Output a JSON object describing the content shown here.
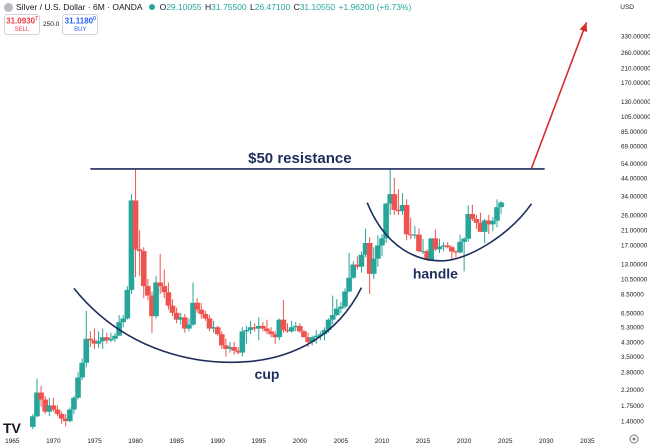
{
  "header": {
    "title": "Silver / U.S. Dollar · 6M · OANDA",
    "ohlc": [
      {
        "k": "O",
        "v": "29.10055"
      },
      {
        "k": "H",
        "v": "31.75500"
      },
      {
        "k": "L",
        "v": "26.47100"
      },
      {
        "k": "C",
        "v": "31.10550"
      }
    ],
    "change": "+1.96200 (+6.73%)"
  },
  "trade": {
    "sell_price": "31.0930",
    "sell_sup": "7",
    "sell_label": "SELL",
    "spread": "250.0",
    "buy_price": "31.1180",
    "buy_sup": "0",
    "buy_label": "BUY"
  },
  "currency": "USD",
  "watermark": "TV",
  "chart_data": {
    "type": "candlestick",
    "scale": "log",
    "y_range": [
      1.2,
      450
    ],
    "x_range": [
      1963.5,
      2038
    ],
    "y_ticks": [
      "1.40000",
      "1.75000",
      "2.20000",
      "2.80000",
      "3.50000",
      "4.30000",
      "5.30000",
      "6.50000",
      "8.50000",
      "10.50000",
      "13.00000",
      "17.00000",
      "21.00000",
      "26.00000",
      "34.00000",
      "44.00000",
      "54.00000",
      "69.00000",
      "85.00000",
      "105.00000",
      "130.00000",
      "170.00000",
      "210.00000",
      "260.00000",
      "330.00000"
    ],
    "x_ticks": [
      "1965",
      "1970",
      "1975",
      "1980",
      "1985",
      "1990",
      "1995",
      "2000",
      "2005",
      "2010",
      "2015",
      "2020",
      "2025",
      "2030",
      "2035"
    ],
    "colors": {
      "up": "#26a69a",
      "down": "#ef5350",
      "annotation": "#1e2d5c",
      "arrow": "#d32f2f"
    },
    "annotations": {
      "resistance_label": "$50 resistance",
      "resistance_level": 50,
      "cup_label": "cup",
      "handle_label": "handle"
    },
    "candles": [
      {
        "t": 1967.5,
        "o": 1.29,
        "h": 1.55,
        "l": 1.25,
        "c": 1.5
      },
      {
        "t": 1968,
        "o": 1.5,
        "h": 2.56,
        "l": 1.48,
        "c": 2.1
      },
      {
        "t": 1968.5,
        "o": 2.1,
        "h": 2.3,
        "l": 1.72,
        "c": 1.9
      },
      {
        "t": 1969,
        "o": 1.9,
        "h": 2.0,
        "l": 1.55,
        "c": 1.6
      },
      {
        "t": 1969.5,
        "o": 1.6,
        "h": 1.95,
        "l": 1.5,
        "c": 1.75
      },
      {
        "t": 1970,
        "o": 1.75,
        "h": 1.95,
        "l": 1.6,
        "c": 1.65
      },
      {
        "t": 1970.5,
        "o": 1.65,
        "h": 1.75,
        "l": 1.5,
        "c": 1.55
      },
      {
        "t": 1971,
        "o": 1.55,
        "h": 1.6,
        "l": 1.35,
        "c": 1.45
      },
      {
        "t": 1971.5,
        "o": 1.45,
        "h": 1.55,
        "l": 1.3,
        "c": 1.4
      },
      {
        "t": 1972,
        "o": 1.4,
        "h": 1.7,
        "l": 1.38,
        "c": 1.65
      },
      {
        "t": 1972.5,
        "o": 1.65,
        "h": 2.0,
        "l": 1.55,
        "c": 1.95
      },
      {
        "t": 1973,
        "o": 1.95,
        "h": 2.8,
        "l": 1.9,
        "c": 2.6
      },
      {
        "t": 1973.5,
        "o": 2.6,
        "h": 3.4,
        "l": 2.5,
        "c": 3.2
      },
      {
        "t": 1974,
        "o": 3.2,
        "h": 6.7,
        "l": 3.0,
        "c": 4.5
      },
      {
        "t": 1974.5,
        "o": 4.5,
        "h": 5.0,
        "l": 4.0,
        "c": 4.4
      },
      {
        "t": 1975,
        "o": 4.4,
        "h": 5.2,
        "l": 3.9,
        "c": 4.2
      },
      {
        "t": 1975.5,
        "o": 4.2,
        "h": 5.0,
        "l": 3.95,
        "c": 4.35
      },
      {
        "t": 1976,
        "o": 4.35,
        "h": 5.2,
        "l": 3.9,
        "c": 4.6
      },
      {
        "t": 1976.5,
        "o": 4.6,
        "h": 4.9,
        "l": 4.2,
        "c": 4.4
      },
      {
        "t": 1977,
        "o": 4.4,
        "h": 4.9,
        "l": 4.3,
        "c": 4.5
      },
      {
        "t": 1977.5,
        "o": 4.5,
        "h": 4.9,
        "l": 4.3,
        "c": 4.7
      },
      {
        "t": 1978,
        "o": 4.7,
        "h": 6.3,
        "l": 4.7,
        "c": 5.7
      },
      {
        "t": 1978.5,
        "o": 5.7,
        "h": 6.3,
        "l": 5.3,
        "c": 6.0
      },
      {
        "t": 1979,
        "o": 6.0,
        "h": 9.5,
        "l": 5.9,
        "c": 9.0
      },
      {
        "t": 1979.5,
        "o": 9.0,
        "h": 35.0,
        "l": 8.5,
        "c": 32.0
      },
      {
        "t": 1980,
        "o": 32.0,
        "h": 50.0,
        "l": 10.8,
        "c": 16.0
      },
      {
        "t": 1980.5,
        "o": 16.0,
        "h": 21.0,
        "l": 11.0,
        "c": 15.6
      },
      {
        "t": 1981,
        "o": 15.6,
        "h": 16.5,
        "l": 8.0,
        "c": 9.5
      },
      {
        "t": 1981.5,
        "o": 9.5,
        "h": 10.5,
        "l": 7.8,
        "c": 8.3
      },
      {
        "t": 1982,
        "o": 8.3,
        "h": 8.8,
        "l": 4.9,
        "c": 6.2
      },
      {
        "t": 1982.5,
        "o": 6.2,
        "h": 11.0,
        "l": 6.0,
        "c": 10.0
      },
      {
        "t": 1983,
        "o": 10.0,
        "h": 15.0,
        "l": 8.5,
        "c": 9.5
      },
      {
        "t": 1983.5,
        "o": 9.5,
        "h": 12.0,
        "l": 8.0,
        "c": 8.7
      },
      {
        "t": 1984,
        "o": 8.7,
        "h": 10.0,
        "l": 6.8,
        "c": 7.2
      },
      {
        "t": 1984.5,
        "o": 7.2,
        "h": 7.9,
        "l": 6.2,
        "c": 6.5
      },
      {
        "t": 1985,
        "o": 6.5,
        "h": 7.0,
        "l": 5.6,
        "c": 5.9
      },
      {
        "t": 1985.5,
        "o": 5.9,
        "h": 6.5,
        "l": 5.5,
        "c": 6.1
      },
      {
        "t": 1986,
        "o": 6.1,
        "h": 6.4,
        "l": 4.9,
        "c": 5.2
      },
      {
        "t": 1986.5,
        "o": 5.2,
        "h": 6.0,
        "l": 5.0,
        "c": 5.5
      },
      {
        "t": 1987,
        "o": 5.5,
        "h": 10.0,
        "l": 5.4,
        "c": 7.5
      },
      {
        "t": 1987.5,
        "o": 7.5,
        "h": 8.0,
        "l": 6.5,
        "c": 6.8
      },
      {
        "t": 1988,
        "o": 6.8,
        "h": 7.5,
        "l": 6.0,
        "c": 6.4
      },
      {
        "t": 1988.5,
        "o": 6.4,
        "h": 6.7,
        "l": 5.8,
        "c": 6.0
      },
      {
        "t": 1989,
        "o": 6.0,
        "h": 6.3,
        "l": 5.0,
        "c": 5.2
      },
      {
        "t": 1989.5,
        "o": 5.2,
        "h": 5.8,
        "l": 4.9,
        "c": 5.3
      },
      {
        "t": 1990,
        "o": 5.3,
        "h": 5.4,
        "l": 4.7,
        "c": 4.8
      },
      {
        "t": 1990.5,
        "o": 4.8,
        "h": 5.0,
        "l": 3.9,
        "c": 4.1
      },
      {
        "t": 1991,
        "o": 4.1,
        "h": 4.5,
        "l": 3.5,
        "c": 3.9
      },
      {
        "t": 1991.5,
        "o": 3.9,
        "h": 4.3,
        "l": 3.7,
        "c": 4.0
      },
      {
        "t": 1992,
        "o": 4.0,
        "h": 4.3,
        "l": 3.6,
        "c": 3.8
      },
      {
        "t": 1992.5,
        "o": 3.8,
        "h": 4.0,
        "l": 3.6,
        "c": 3.7
      },
      {
        "t": 1993,
        "o": 3.7,
        "h": 5.3,
        "l": 3.5,
        "c": 5.0
      },
      {
        "t": 1993.5,
        "o": 5.0,
        "h": 5.4,
        "l": 4.2,
        "c": 5.1
      },
      {
        "t": 1994,
        "o": 5.1,
        "h": 5.8,
        "l": 4.8,
        "c": 5.3
      },
      {
        "t": 1994.5,
        "o": 5.3,
        "h": 5.6,
        "l": 5.0,
        "c": 5.2
      },
      {
        "t": 1995,
        "o": 5.2,
        "h": 6.1,
        "l": 4.4,
        "c": 5.4
      },
      {
        "t": 1995.5,
        "o": 5.4,
        "h": 5.7,
        "l": 5.0,
        "c": 5.2
      },
      {
        "t": 1996,
        "o": 5.2,
        "h": 5.9,
        "l": 4.8,
        "c": 5.0
      },
      {
        "t": 1996.5,
        "o": 5.0,
        "h": 5.3,
        "l": 4.6,
        "c": 4.8
      },
      {
        "t": 1997,
        "o": 4.8,
        "h": 5.0,
        "l": 4.2,
        "c": 4.6
      },
      {
        "t": 1997.5,
        "o": 4.6,
        "h": 6.0,
        "l": 4.4,
        "c": 5.9
      },
      {
        "t": 1998,
        "o": 5.9,
        "h": 7.8,
        "l": 4.9,
        "c": 5.1
      },
      {
        "t": 1998.5,
        "o": 5.1,
        "h": 5.6,
        "l": 4.9,
        "c": 5.0
      },
      {
        "t": 1999,
        "o": 5.0,
        "h": 5.8,
        "l": 4.9,
        "c": 5.3
      },
      {
        "t": 1999.5,
        "o": 5.3,
        "h": 5.7,
        "l": 5.0,
        "c": 5.4
      },
      {
        "t": 2000,
        "o": 5.4,
        "h": 5.6,
        "l": 4.9,
        "c": 5.0
      },
      {
        "t": 2000.5,
        "o": 5.0,
        "h": 5.1,
        "l": 4.6,
        "c": 4.6
      },
      {
        "t": 2001,
        "o": 4.6,
        "h": 4.9,
        "l": 4.0,
        "c": 4.3
      },
      {
        "t": 2001.5,
        "o": 4.3,
        "h": 4.7,
        "l": 4.1,
        "c": 4.6
      },
      {
        "t": 2002,
        "o": 4.6,
        "h": 5.1,
        "l": 4.2,
        "c": 4.7
      },
      {
        "t": 2002.5,
        "o": 4.7,
        "h": 5.0,
        "l": 4.4,
        "c": 4.8
      },
      {
        "t": 2003,
        "o": 4.8,
        "h": 5.3,
        "l": 4.4,
        "c": 5.1
      },
      {
        "t": 2003.5,
        "o": 5.1,
        "h": 6.0,
        "l": 4.9,
        "c": 5.9
      },
      {
        "t": 2004,
        "o": 5.9,
        "h": 8.3,
        "l": 5.5,
        "c": 6.3
      },
      {
        "t": 2004.5,
        "o": 6.3,
        "h": 7.9,
        "l": 6.2,
        "c": 6.9
      },
      {
        "t": 2005,
        "o": 6.9,
        "h": 7.6,
        "l": 6.5,
        "c": 7.1
      },
      {
        "t": 2005.5,
        "o": 7.1,
        "h": 9.2,
        "l": 6.9,
        "c": 8.8
      },
      {
        "t": 2006,
        "o": 8.8,
        "h": 15.2,
        "l": 8.7,
        "c": 10.7
      },
      {
        "t": 2006.5,
        "o": 10.7,
        "h": 13.5,
        "l": 10.5,
        "c": 12.9
      },
      {
        "t": 2007,
        "o": 12.9,
        "h": 14.5,
        "l": 12.0,
        "c": 12.5
      },
      {
        "t": 2007.5,
        "o": 12.5,
        "h": 15.5,
        "l": 11.5,
        "c": 14.8
      },
      {
        "t": 2008,
        "o": 14.8,
        "h": 21.5,
        "l": 14.3,
        "c": 17.5
      },
      {
        "t": 2008.5,
        "o": 17.5,
        "h": 19.0,
        "l": 8.5,
        "c": 11.3
      },
      {
        "t": 2009,
        "o": 11.3,
        "h": 16.5,
        "l": 10.5,
        "c": 14.0
      },
      {
        "t": 2009.5,
        "o": 14.0,
        "h": 19.5,
        "l": 12.5,
        "c": 16.9
      },
      {
        "t": 2010,
        "o": 16.9,
        "h": 19.8,
        "l": 14.6,
        "c": 18.7
      },
      {
        "t": 2010.5,
        "o": 18.7,
        "h": 31.0,
        "l": 17.5,
        "c": 30.6
      },
      {
        "t": 2011,
        "o": 30.6,
        "h": 49.8,
        "l": 26.0,
        "c": 35.0
      },
      {
        "t": 2011.5,
        "o": 35.0,
        "h": 44.0,
        "l": 26.0,
        "c": 28.0
      },
      {
        "t": 2012,
        "o": 28.0,
        "h": 37.5,
        "l": 26.0,
        "c": 27.5
      },
      {
        "t": 2012.5,
        "o": 27.5,
        "h": 35.4,
        "l": 26.1,
        "c": 30.0
      },
      {
        "t": 2013,
        "o": 30.0,
        "h": 32.5,
        "l": 18.2,
        "c": 19.8
      },
      {
        "t": 2013.5,
        "o": 19.8,
        "h": 25.0,
        "l": 18.5,
        "c": 19.5
      },
      {
        "t": 2014,
        "o": 19.5,
        "h": 22.2,
        "l": 18.6,
        "c": 19.7
      },
      {
        "t": 2014.5,
        "o": 19.7,
        "h": 21.5,
        "l": 15.3,
        "c": 15.6
      },
      {
        "t": 2015,
        "o": 15.6,
        "h": 18.5,
        "l": 15.0,
        "c": 15.6
      },
      {
        "t": 2015.5,
        "o": 15.6,
        "h": 16.0,
        "l": 13.6,
        "c": 13.8
      },
      {
        "t": 2016,
        "o": 13.8,
        "h": 18.5,
        "l": 13.7,
        "c": 18.7
      },
      {
        "t": 2016.5,
        "o": 18.7,
        "h": 21.2,
        "l": 15.6,
        "c": 16.0
      },
      {
        "t": 2017,
        "o": 16.0,
        "h": 18.6,
        "l": 15.2,
        "c": 16.6
      },
      {
        "t": 2017.5,
        "o": 16.6,
        "h": 17.7,
        "l": 15.6,
        "c": 16.9
      },
      {
        "t": 2018,
        "o": 16.9,
        "h": 17.7,
        "l": 16.2,
        "c": 16.5
      },
      {
        "t": 2018.5,
        "o": 16.5,
        "h": 16.8,
        "l": 13.9,
        "c": 15.5
      },
      {
        "t": 2019,
        "o": 15.5,
        "h": 15.8,
        "l": 14.3,
        "c": 15.3
      },
      {
        "t": 2019.5,
        "o": 15.3,
        "h": 19.7,
        "l": 15.1,
        "c": 17.8
      },
      {
        "t": 2020,
        "o": 17.8,
        "h": 19.0,
        "l": 11.7,
        "c": 18.6
      },
      {
        "t": 2020.5,
        "o": 18.6,
        "h": 29.9,
        "l": 17.8,
        "c": 26.4
      },
      {
        "t": 2021,
        "o": 26.4,
        "h": 30.1,
        "l": 23.9,
        "c": 24.6
      },
      {
        "t": 2021.5,
        "o": 24.6,
        "h": 26.0,
        "l": 21.4,
        "c": 23.3
      },
      {
        "t": 2022,
        "o": 23.3,
        "h": 26.9,
        "l": 20.4,
        "c": 20.5
      },
      {
        "t": 2022.5,
        "o": 20.5,
        "h": 24.6,
        "l": 17.5,
        "c": 24.1
      },
      {
        "t": 2023,
        "o": 24.1,
        "h": 26.1,
        "l": 19.9,
        "c": 22.8
      },
      {
        "t": 2023.5,
        "o": 22.8,
        "h": 25.3,
        "l": 20.7,
        "c": 24.0
      },
      {
        "t": 2024,
        "o": 24.0,
        "h": 32.5,
        "l": 21.9,
        "c": 29.1
      },
      {
        "t": 2024.5,
        "o": 29.1,
        "h": 31.75,
        "l": 26.47,
        "c": 31.1
      }
    ]
  }
}
